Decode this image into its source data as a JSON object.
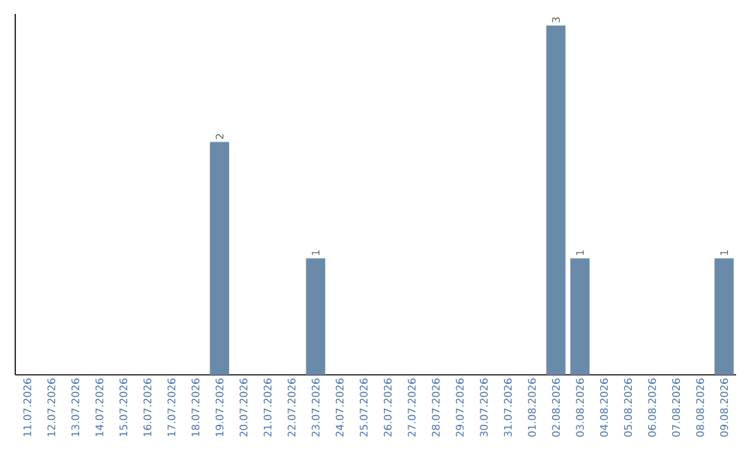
{
  "chart_data": {
    "type": "bar",
    "categories": [
      "11.07.2026",
      "12.07.2026",
      "13.07.2026",
      "14.07.2026",
      "15.07.2026",
      "16.07.2026",
      "17.07.2026",
      "18.07.2026",
      "19.07.2026",
      "20.07.2026",
      "21.07.2026",
      "22.07.2026",
      "23.07.2026",
      "24.07.2026",
      "25.07.2026",
      "26.07.2026",
      "27.07.2026",
      "28.07.2026",
      "29.07.2026",
      "30.07.2026",
      "31.07.2026",
      "01.08.2026",
      "02.08.2026",
      "03.08.2026",
      "04.08.2026",
      "05.08.2026",
      "06.08.2026",
      "07.08.2026",
      "08.08.2026",
      "09.08.2026"
    ],
    "values": [
      0,
      0,
      0,
      0,
      0,
      0,
      0,
      0,
      2,
      0,
      0,
      0,
      1,
      0,
      0,
      0,
      0,
      0,
      0,
      0,
      0,
      0,
      3,
      1,
      0,
      0,
      0,
      0,
      0,
      1
    ],
    "value_labels": [
      null,
      null,
      null,
      null,
      null,
      null,
      null,
      null,
      "2",
      null,
      null,
      null,
      "1",
      null,
      null,
      null,
      null,
      null,
      null,
      null,
      null,
      null,
      "3",
      "1",
      null,
      null,
      null,
      null,
      null,
      "1"
    ],
    "color": "#6a8aaa",
    "ylim": [
      0,
      3.1
    ],
    "tick_labels": "x"
  }
}
